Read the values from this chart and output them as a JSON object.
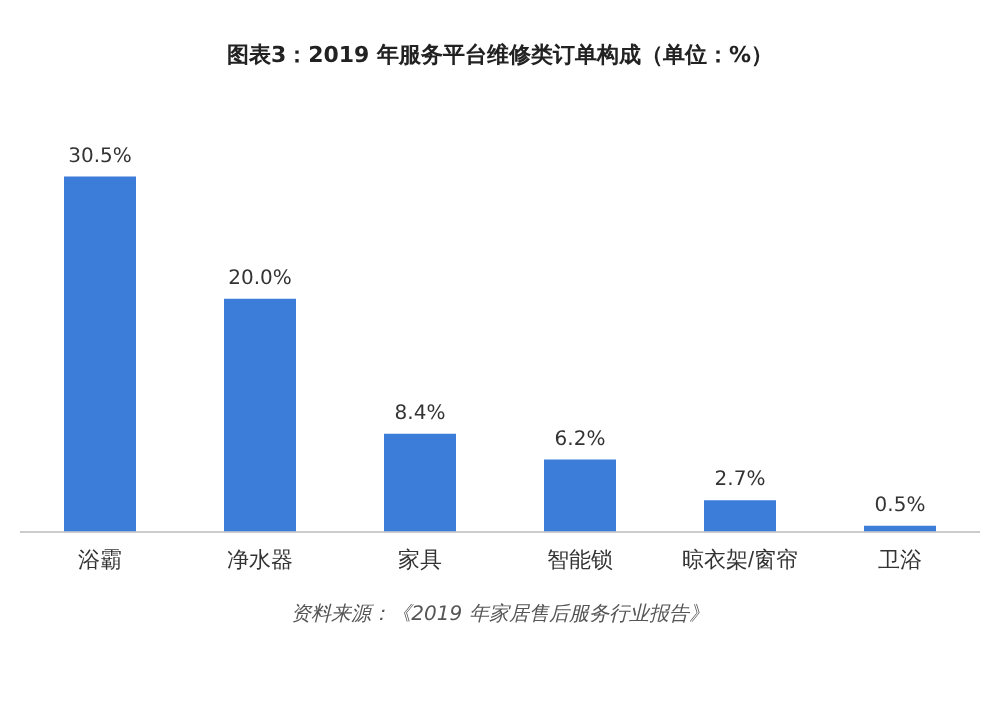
{
  "chart_data": {
    "type": "bar",
    "title": "图表3：2019 年服务平台维修类订单构成（单位：%）",
    "categories": [
      "浴霸",
      "净水器",
      "家具",
      "智能锁",
      "晾衣架/窗帘",
      "卫浴"
    ],
    "values": [
      30.5,
      20.0,
      8.4,
      6.2,
      2.7,
      0.5
    ],
    "value_labels": [
      "30.5%",
      "20.0%",
      "8.4%",
      "6.2%",
      "2.7%",
      "0.5%"
    ],
    "color": "#3b7dd8",
    "grid": false,
    "legend": false,
    "annotations": [
      "资料来源：《2019 年家居售后服务行业报告》"
    ]
  }
}
